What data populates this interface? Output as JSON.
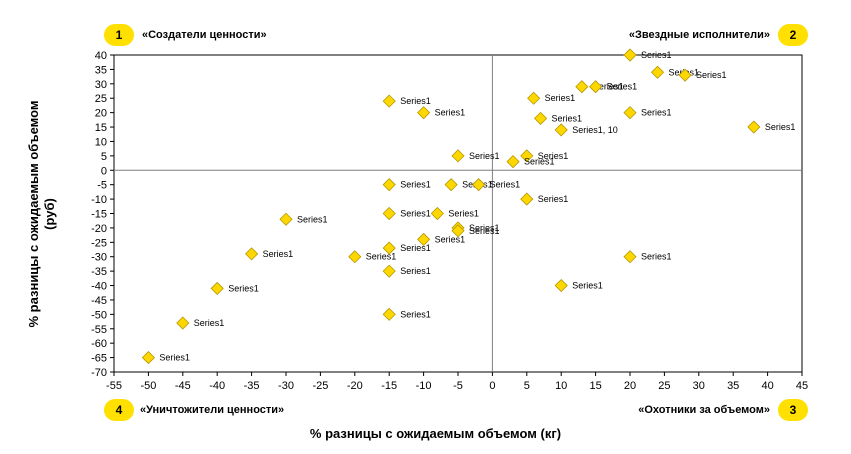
{
  "quadrants": [
    {
      "number": "1",
      "label": "«Создатели ценности»"
    },
    {
      "number": "2",
      "label": "«Звездные исполнители»"
    },
    {
      "number": "3",
      "label": "«Охотники за объемом»"
    },
    {
      "number": "4",
      "label": "«Уничтожители ценности»"
    }
  ],
  "colors": {
    "marker_fill": "#ffd700",
    "marker_stroke": "#b39800",
    "badge": "#ffe000",
    "axis": "#000000",
    "quadrant_lines": "#7f7f7f"
  },
  "chart_data": {
    "type": "scatter",
    "xlabel": "% разницы с ожидаемым объемом (кг)",
    "ylabel_line1": "% разницы с ожидаемым объемом",
    "ylabel_line2": "(руб)",
    "xlim": [
      -55,
      45
    ],
    "ylim": [
      -70,
      40
    ],
    "xticks": [
      -55,
      -50,
      -45,
      -40,
      -35,
      -30,
      -25,
      -20,
      -15,
      -10,
      -5,
      0,
      5,
      10,
      15,
      20,
      25,
      30,
      35,
      40,
      45
    ],
    "yticks": [
      40,
      35,
      30,
      25,
      20,
      15,
      10,
      5,
      0,
      -5,
      -10,
      -15,
      -20,
      -25,
      -30,
      -35,
      -40,
      -45,
      -50,
      -55,
      -60,
      -65,
      -70
    ],
    "grid": false,
    "series": [
      {
        "name": "Series1",
        "points": [
          {
            "x": 20,
            "y": 40,
            "label": "Series1"
          },
          {
            "x": 24,
            "y": 34,
            "label": "Series1"
          },
          {
            "x": 28,
            "y": 33,
            "label": "Series1"
          },
          {
            "x": 13,
            "y": 29,
            "label": "Series1"
          },
          {
            "x": 15,
            "y": 29,
            "label": "Series1"
          },
          {
            "x": 6,
            "y": 25,
            "label": "Series1"
          },
          {
            "x": 20,
            "y": 20,
            "label": "Series1"
          },
          {
            "x": 7,
            "y": 18,
            "label": "Series1"
          },
          {
            "x": 10,
            "y": 14,
            "label": "Series1, 10"
          },
          {
            "x": 38,
            "y": 15,
            "label": "Series1"
          },
          {
            "x": 5,
            "y": 5,
            "label": "Series1"
          },
          {
            "x": 3,
            "y": 3,
            "label": "Series1"
          },
          {
            "x": -5,
            "y": 5,
            "label": "Series1"
          },
          {
            "x": -15,
            "y": 24,
            "label": "Series1"
          },
          {
            "x": -10,
            "y": 20,
            "label": "Series1"
          },
          {
            "x": -15,
            "y": -5,
            "label": "Series1"
          },
          {
            "x": -6,
            "y": -5,
            "label": "Series1"
          },
          {
            "x": -2,
            "y": -5,
            "label": "Series1"
          },
          {
            "x": 5,
            "y": -10,
            "label": "Series1"
          },
          {
            "x": -15,
            "y": -15,
            "label": "Series1"
          },
          {
            "x": -8,
            "y": -15,
            "label": "Series1"
          },
          {
            "x": -5,
            "y": -20,
            "label": "Series1"
          },
          {
            "x": -5,
            "y": -21,
            "label": "Series1"
          },
          {
            "x": -10,
            "y": -24,
            "label": "Series1"
          },
          {
            "x": -15,
            "y": -27,
            "label": "Series1"
          },
          {
            "x": -30,
            "y": -17,
            "label": "Series1"
          },
          {
            "x": -35,
            "y": -29,
            "label": "Series1"
          },
          {
            "x": -20,
            "y": -30,
            "label": "Series1"
          },
          {
            "x": 20,
            "y": -30,
            "label": "Series1"
          },
          {
            "x": -15,
            "y": -35,
            "label": "Series1"
          },
          {
            "x": -40,
            "y": -41,
            "label": "Series1"
          },
          {
            "x": 10,
            "y": -40,
            "label": "Series1"
          },
          {
            "x": -15,
            "y": -50,
            "label": "Series1"
          },
          {
            "x": -45,
            "y": -53,
            "label": "Series1"
          },
          {
            "x": -50,
            "y": -65,
            "label": "Series1"
          }
        ]
      }
    ]
  }
}
